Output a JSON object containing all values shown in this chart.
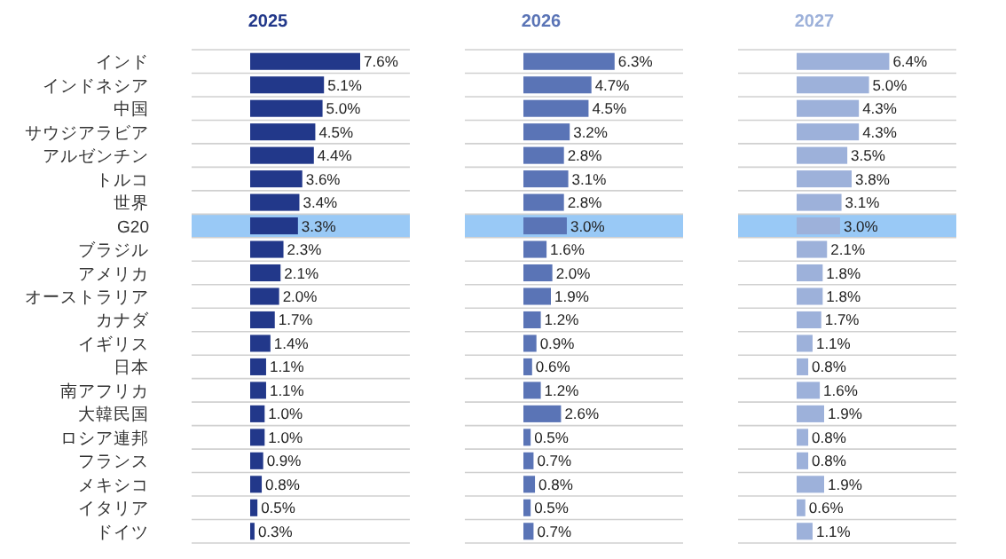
{
  "chart_data": [
    {
      "type": "bar",
      "orientation": "horizontal",
      "title": "2025",
      "color": "#22388a",
      "grid": "y",
      "categories": [
        "インド",
        "インドネシア",
        "中国",
        "サウジアラビア",
        "アルゼンチン",
        "トルコ",
        "世界",
        "G20",
        "ブラジル",
        "アメリカ",
        "オーストラリア",
        "カナダ",
        "イギリス",
        "日本",
        "南アフリカ",
        "大韓民国",
        "ロシア連邦",
        "フランス",
        "メキシコ",
        "イタリア",
        "ドイツ"
      ],
      "values": [
        7.6,
        5.1,
        5.0,
        4.5,
        4.4,
        3.6,
        3.4,
        3.3,
        2.3,
        2.1,
        2.0,
        1.7,
        1.4,
        1.1,
        1.1,
        1.0,
        1.0,
        0.9,
        0.8,
        0.5,
        0.3
      ],
      "value_labels": [
        "7.6%",
        "5.1%",
        "5.0%",
        "4.5%",
        "4.4%",
        "3.6%",
        "3.4%",
        "3.3%",
        "2.3%",
        "2.1%",
        "2.0%",
        "1.7%",
        "1.4%",
        "1.1%",
        "1.1%",
        "1.0%",
        "1.0%",
        "0.9%",
        "0.8%",
        "0.5%",
        "0.3%"
      ],
      "bands": [
        {
          "axis": "y",
          "from": "G20",
          "to": "G20",
          "color": "#8ec3f5"
        }
      ]
    },
    {
      "type": "bar",
      "orientation": "horizontal",
      "title": "2026",
      "color": "#5a74b6",
      "grid": "y",
      "tick_labels": false,
      "categories": [
        "インド",
        "インドネシア",
        "中国",
        "サウジアラビア",
        "アルゼンチン",
        "トルコ",
        "世界",
        "G20",
        "ブラジル",
        "アメリカ",
        "オーストラリア",
        "カナダ",
        "イギリス",
        "日本",
        "南アフリカ",
        "大韓民国",
        "ロシア連邦",
        "フランス",
        "メキシコ",
        "イタリア",
        "ドイツ"
      ],
      "values": [
        6.3,
        4.7,
        4.5,
        3.2,
        2.8,
        3.1,
        2.8,
        3.0,
        1.6,
        2.0,
        1.9,
        1.2,
        0.9,
        0.6,
        1.2,
        2.6,
        0.5,
        0.7,
        0.8,
        0.5,
        0.7
      ],
      "value_labels": [
        "6.3%",
        "4.7%",
        "4.5%",
        "3.2%",
        "2.8%",
        "3.1%",
        "2.8%",
        "3.0%",
        "1.6%",
        "2.0%",
        "1.9%",
        "1.2%",
        "0.9%",
        "0.6%",
        "1.2%",
        "2.6%",
        "0.5%",
        "0.7%",
        "0.8%",
        "0.5%",
        "0.7%"
      ],
      "bands": [
        {
          "axis": "y",
          "from": "G20",
          "to": "G20",
          "color": "#8ec3f5"
        }
      ]
    },
    {
      "type": "bar",
      "orientation": "horizontal",
      "title": "2027",
      "color": "#9db1da",
      "grid": "y",
      "tick_labels": false,
      "categories": [
        "インド",
        "インドネシア",
        "中国",
        "サウジアラビア",
        "アルゼンチン",
        "トルコ",
        "世界",
        "G20",
        "ブラジル",
        "アメリカ",
        "オーストラリア",
        "カナダ",
        "イギリス",
        "日本",
        "南アフリカ",
        "大韓民国",
        "ロシア連邦",
        "フランス",
        "メキシコ",
        "イタリア",
        "ドイツ"
      ],
      "values": [
        6.4,
        5.0,
        4.3,
        4.3,
        3.5,
        3.8,
        3.1,
        3.0,
        2.1,
        1.8,
        1.8,
        1.7,
        1.1,
        0.8,
        1.6,
        1.9,
        0.8,
        0.8,
        1.9,
        0.6,
        1.1
      ],
      "value_labels": [
        "6.4%",
        "5.0%",
        "4.3%",
        "4.3%",
        "3.5%",
        "3.8%",
        "3.1%",
        "3.0%",
        "2.1%",
        "1.8%",
        "1.8%",
        "1.7%",
        "1.1%",
        "0.8%",
        "1.6%",
        "1.9%",
        "0.8%",
        "0.8%",
        "1.9%",
        "0.6%",
        "1.1%"
      ],
      "bands": [
        {
          "axis": "y",
          "from": "G20",
          "to": "G20",
          "color": "#8ec3f5"
        }
      ]
    }
  ]
}
